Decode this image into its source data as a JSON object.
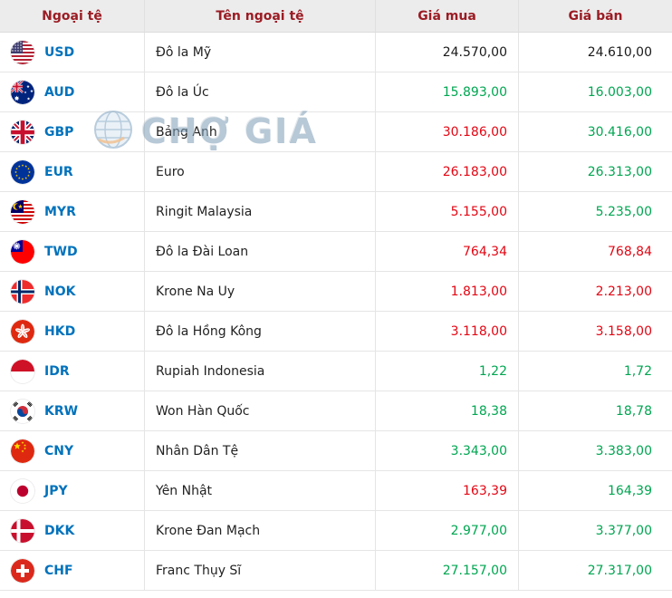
{
  "table": {
    "columns": [
      {
        "key": "code",
        "label": "Ngoại tệ"
      },
      {
        "key": "name",
        "label": "Tên ngoại tệ"
      },
      {
        "key": "buy",
        "label": "Giá mua"
      },
      {
        "key": "sell",
        "label": "Giá bán"
      }
    ],
    "rows": [
      {
        "code": "USD",
        "flag": "us",
        "flag_name": "united-states",
        "name": "Đô la Mỹ",
        "buy": "24.570,00",
        "buy_color": "black",
        "sell": "24.610,00",
        "sell_color": "black"
      },
      {
        "code": "AUD",
        "flag": "au",
        "flag_name": "australia",
        "name": "Đô la Úc",
        "buy": "15.893,00",
        "buy_color": "green",
        "sell": "16.003,00",
        "sell_color": "green"
      },
      {
        "code": "GBP",
        "flag": "gb",
        "flag_name": "united-kingdom",
        "name": "Bảng Anh",
        "buy": "30.186,00",
        "buy_color": "red",
        "sell": "30.416,00",
        "sell_color": "green"
      },
      {
        "code": "EUR",
        "flag": "eu",
        "flag_name": "european-union",
        "name": "Euro",
        "buy": "26.183,00",
        "buy_color": "red",
        "sell": "26.313,00",
        "sell_color": "green"
      },
      {
        "code": "MYR",
        "flag": "my",
        "flag_name": "malaysia",
        "name": "Ringit Malaysia",
        "buy": "5.155,00",
        "buy_color": "red",
        "sell": "5.235,00",
        "sell_color": "green"
      },
      {
        "code": "TWD",
        "flag": "tw",
        "flag_name": "taiwan",
        "name": "Đô la Đài Loan",
        "buy": "764,34",
        "buy_color": "red",
        "sell": "768,84",
        "sell_color": "red"
      },
      {
        "code": "NOK",
        "flag": "no",
        "flag_name": "norway",
        "name": "Krone Na Uy",
        "buy": "1.813,00",
        "buy_color": "red",
        "sell": "2.213,00",
        "sell_color": "red"
      },
      {
        "code": "HKD",
        "flag": "hk",
        "flag_name": "hong-kong",
        "name": "Đô la Hồng Kông",
        "buy": "3.118,00",
        "buy_color": "red",
        "sell": "3.158,00",
        "sell_color": "red"
      },
      {
        "code": "IDR",
        "flag": "id",
        "flag_name": "indonesia",
        "name": "Rupiah Indonesia",
        "buy": "1,22",
        "buy_color": "green",
        "sell": "1,72",
        "sell_color": "green"
      },
      {
        "code": "KRW",
        "flag": "kr",
        "flag_name": "south-korea",
        "name": "Won Hàn Quốc",
        "buy": "18,38",
        "buy_color": "green",
        "sell": "18,78",
        "sell_color": "green"
      },
      {
        "code": "CNY",
        "flag": "cn",
        "flag_name": "china",
        "name": "Nhân Dân Tệ",
        "buy": "3.343,00",
        "buy_color": "green",
        "sell": "3.383,00",
        "sell_color": "green"
      },
      {
        "code": "JPY",
        "flag": "jp",
        "flag_name": "japan",
        "name": "Yên Nhật",
        "buy": "163,39",
        "buy_color": "red",
        "sell": "164,39",
        "sell_color": "green"
      },
      {
        "code": "DKK",
        "flag": "dk",
        "flag_name": "denmark",
        "name": "Krone Đan Mạch",
        "buy": "2.977,00",
        "buy_color": "green",
        "sell": "3.377,00",
        "sell_color": "green"
      },
      {
        "code": "CHF",
        "flag": "ch",
        "flag_name": "switzerland",
        "name": "Franc Thụy Sĩ",
        "buy": "27.157,00",
        "buy_color": "green",
        "sell": "27.317,00",
        "sell_color": "green"
      }
    ]
  },
  "watermark": {
    "text": "CHỢ GIÁ",
    "icon": "globe-icon"
  },
  "colors": {
    "header_bg": "#ececec",
    "header_text": "#9b1c24",
    "code_link": "#0072bc",
    "name_text": "#222222",
    "price_black": "#1a1a1a",
    "price_green": "#00a651",
    "price_red": "#e30613",
    "row_border": "#e5e5e5",
    "watermark": "#7d9cb5"
  }
}
